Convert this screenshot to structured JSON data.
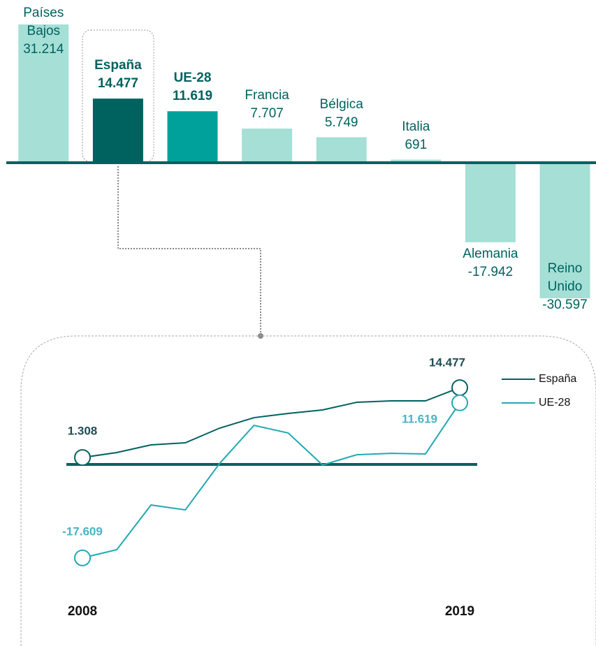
{
  "chart_data": [
    {
      "type": "bar",
      "categories": [
        "Países Bajos",
        "España",
        "UE-28",
        "Francia",
        "Bélgica",
        "Italia",
        "Alemania",
        "Reino Unido"
      ],
      "values": [
        31214,
        14477,
        11619,
        7707,
        5749,
        691,
        -17942,
        -30597
      ],
      "value_labels": [
        "31.214",
        "14.477",
        "11.619",
        "7.707",
        "5.749",
        "691",
        "-17.942",
        "-30.597"
      ],
      "colors": [
        "#a5dfd6",
        "#00625f",
        "#00a19a",
        "#a5dfd6",
        "#a5dfd6",
        "#a5dfd6",
        "#a5dfd6",
        "#a5dfd6"
      ],
      "ylim": [
        -32000,
        32000
      ]
    },
    {
      "type": "line",
      "x": [
        2008,
        2009,
        2010,
        2011,
        2012,
        2013,
        2014,
        2015,
        2016,
        2017,
        2018,
        2019
      ],
      "xlim": [
        2008,
        2019
      ],
      "xticks": [
        2008,
        2019
      ],
      "ylim": [
        -20000,
        16000
      ],
      "legend": "upper right",
      "series": [
        {
          "name": "España",
          "color": "#00625f",
          "values": [
            1308,
            2240,
            3690,
            4080,
            6850,
            8820,
            9610,
            10270,
            11720,
            11980,
            11980,
            14477
          ],
          "value_labels": [
            "1.308",
            null,
            null,
            null,
            null,
            null,
            null,
            null,
            null,
            null,
            null,
            "14.477"
          ]
        },
        {
          "name": "UE-28",
          "color": "#21a9b0",
          "values": [
            -17609,
            -16070,
            -7640,
            -8560,
            200,
            7370,
            5930,
            -100,
            1840,
            2100,
            1980,
            11619
          ],
          "value_labels": [
            "-17.609",
            null,
            null,
            null,
            null,
            null,
            null,
            null,
            null,
            null,
            null,
            "11.619"
          ]
        }
      ]
    }
  ]
}
